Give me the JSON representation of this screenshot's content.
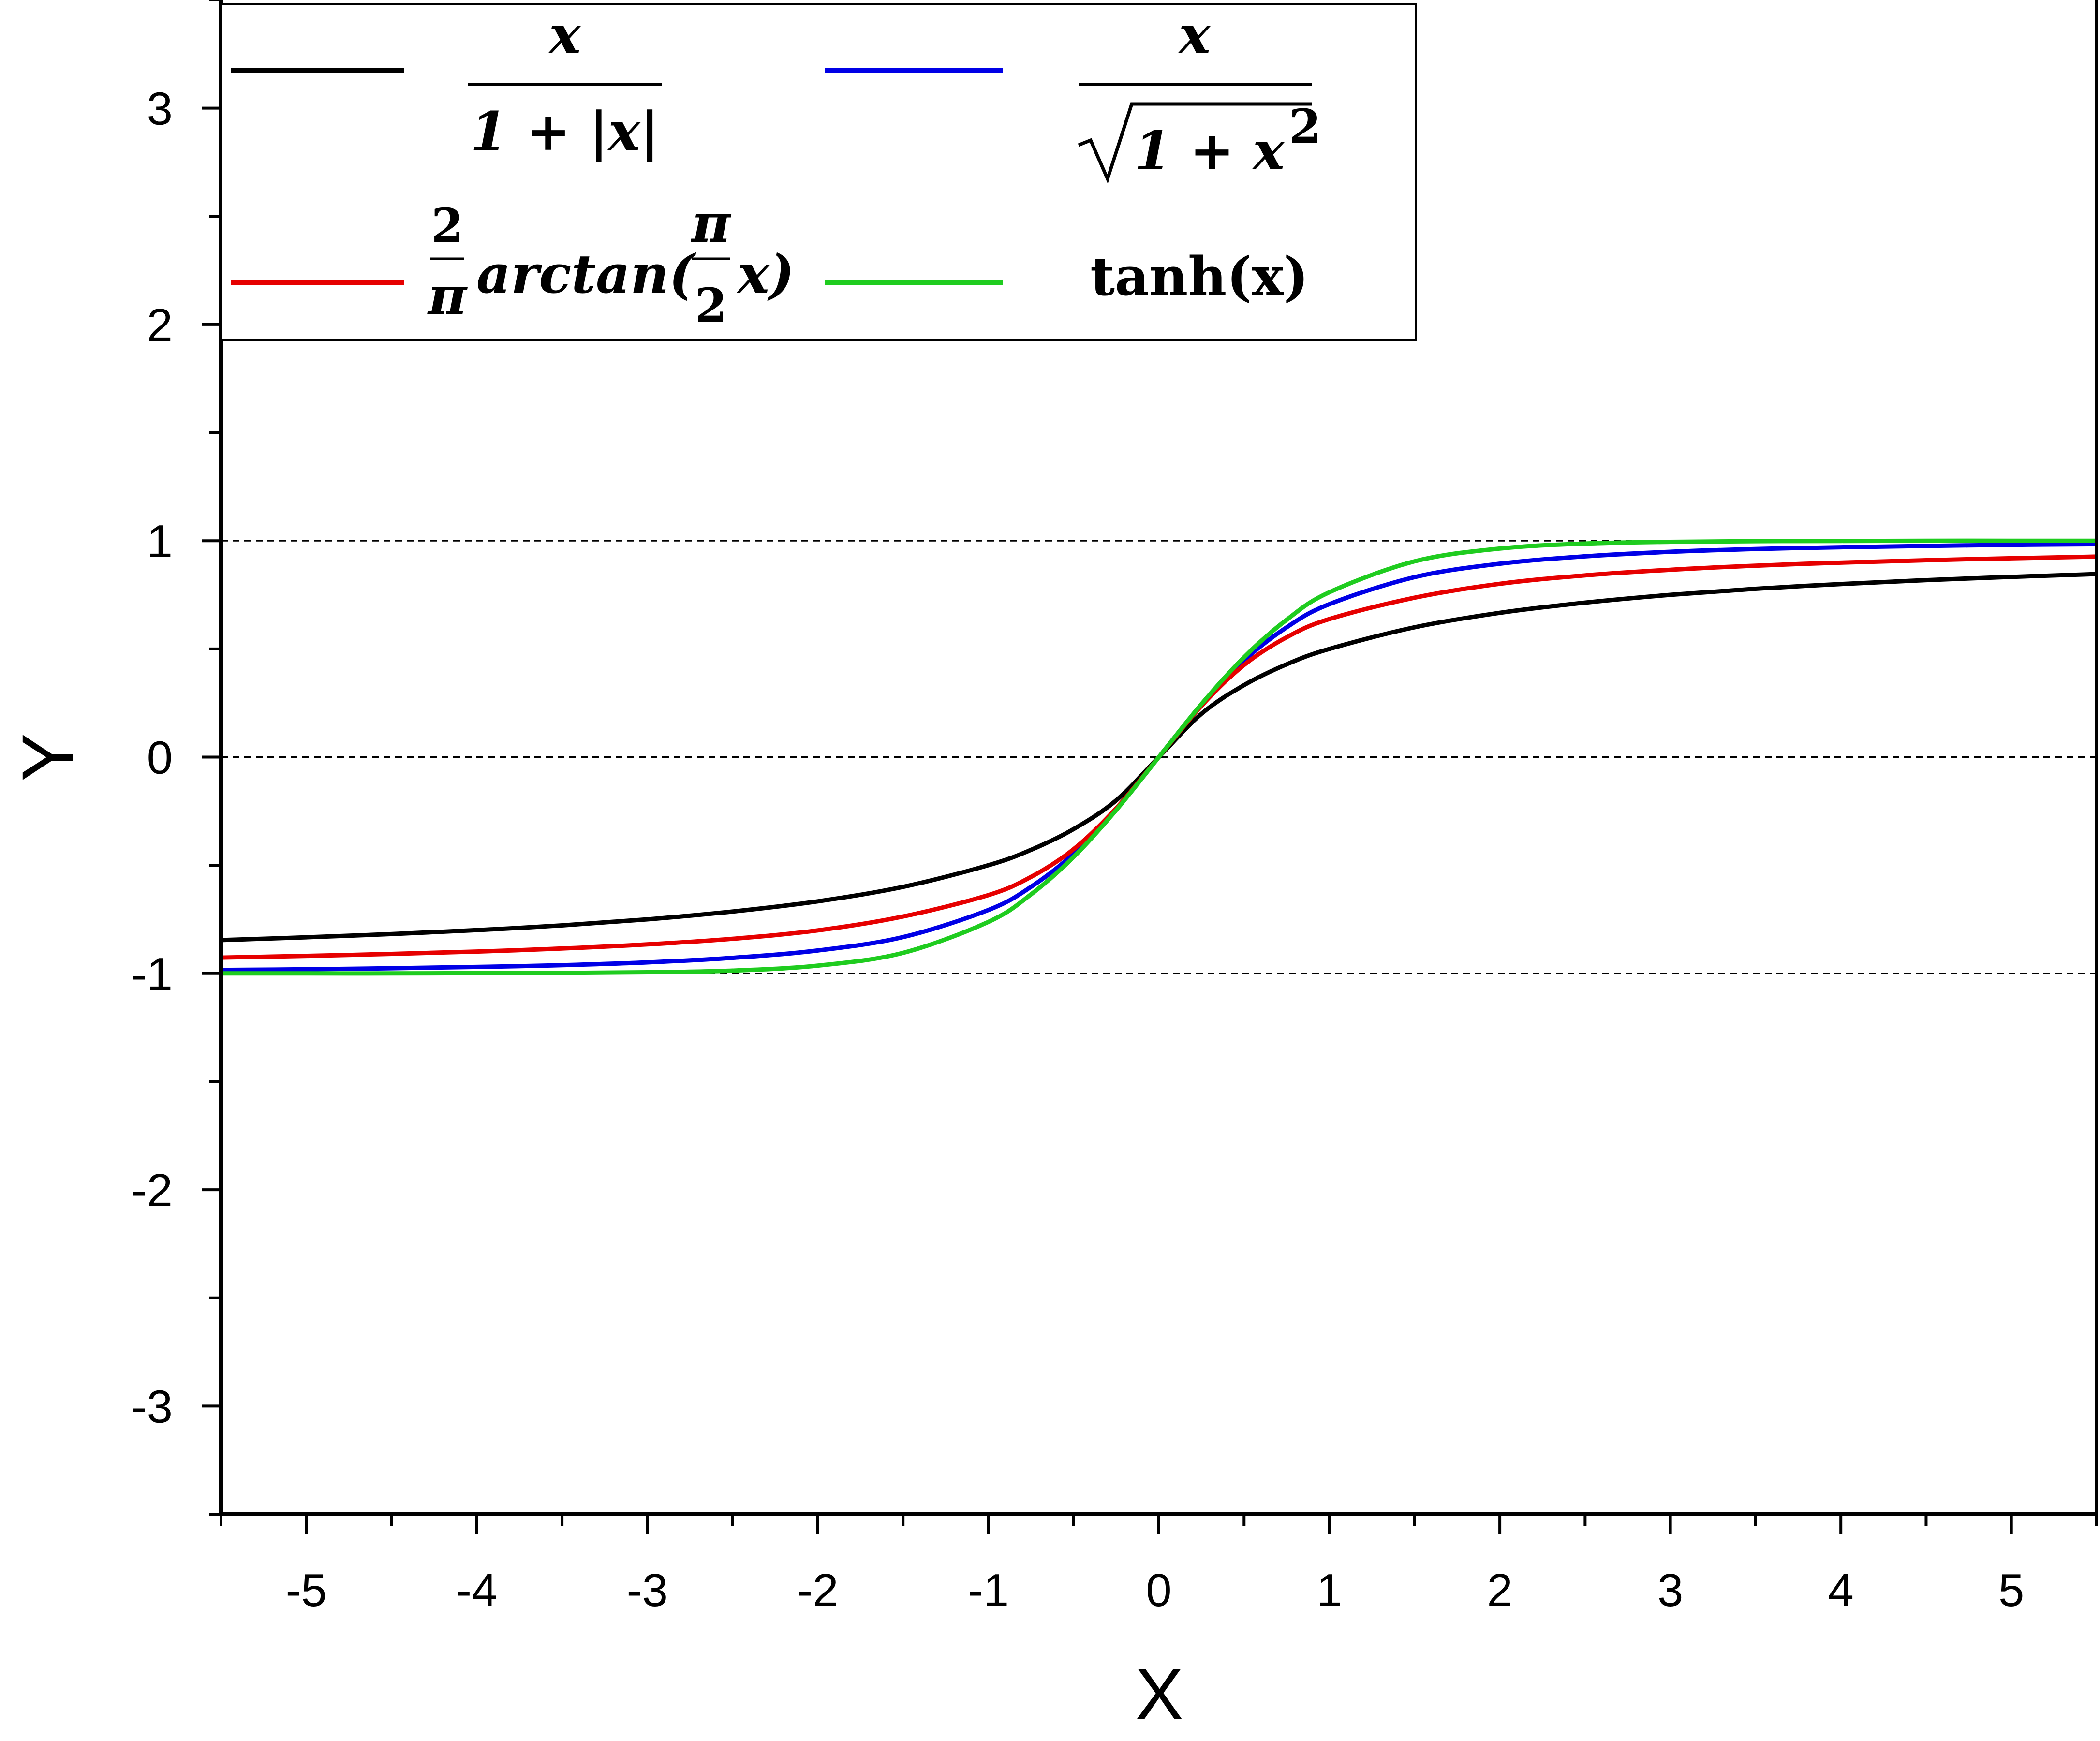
{
  "chart_data": {
    "type": "line",
    "xlabel": "X",
    "ylabel": "Y",
    "xlim": [
      -5.5,
      5.5
    ],
    "ylim": [
      -3.5,
      3.5
    ],
    "xticks": [
      "-5",
      "-4",
      "-3",
      "-2",
      "-1",
      "0",
      "1",
      "2",
      "3",
      "4",
      "5"
    ],
    "yticks": [
      "-3",
      "-2",
      "-1",
      "0",
      "1",
      "2",
      "3"
    ],
    "reference_lines_y": [
      -1,
      0,
      1
    ],
    "legend_position": "top-left",
    "x": [
      -5.5,
      -5,
      -4.5,
      -4,
      -3.5,
      -3,
      -2.5,
      -2,
      -1.5,
      -1,
      -0.75,
      -0.5,
      -0.25,
      0,
      0.25,
      0.5,
      0.75,
      1,
      1.5,
      2,
      2.5,
      3,
      3.5,
      4,
      4.5,
      5,
      5.5
    ],
    "series": [
      {
        "name": "x / (1 + |x|)",
        "color": "#000000",
        "values": [
          -0.846,
          -0.833,
          -0.818,
          -0.8,
          -0.778,
          -0.75,
          -0.714,
          -0.667,
          -0.6,
          -0.5,
          -0.429,
          -0.333,
          -0.2,
          0,
          0.2,
          0.333,
          0.429,
          0.5,
          0.6,
          0.667,
          0.714,
          0.75,
          0.778,
          0.8,
          0.818,
          0.833,
          0.846
        ]
      },
      {
        "name": "x / √(1 + x²)",
        "color": "#0000e6",
        "values": [
          -0.984,
          -0.981,
          -0.976,
          -0.97,
          -0.962,
          -0.949,
          -0.928,
          -0.894,
          -0.832,
          -0.707,
          -0.6,
          -0.447,
          -0.243,
          0,
          0.243,
          0.447,
          0.6,
          0.707,
          0.832,
          0.894,
          0.928,
          0.949,
          0.962,
          0.97,
          0.976,
          0.981,
          0.984
        ]
      },
      {
        "name": "(2/π) arctan((π/2) x)",
        "color": "#e60000",
        "values": [
          -0.927,
          -0.919,
          -0.91,
          -0.899,
          -0.885,
          -0.866,
          -0.84,
          -0.801,
          -0.737,
          -0.638,
          -0.554,
          -0.426,
          -0.237,
          0,
          0.237,
          0.426,
          0.554,
          0.638,
          0.737,
          0.801,
          0.84,
          0.866,
          0.885,
          0.899,
          0.91,
          0.919,
          0.927
        ]
      },
      {
        "name": "tanh(x)",
        "color": "#1fcc1f",
        "values": [
          -1.0,
          -1.0,
          -1.0,
          -0.999,
          -0.998,
          -0.995,
          -0.987,
          -0.964,
          -0.905,
          -0.762,
          -0.635,
          -0.462,
          -0.245,
          0,
          0.245,
          0.462,
          0.635,
          0.762,
          0.905,
          0.964,
          0.987,
          0.995,
          0.998,
          0.999,
          1.0,
          1.0,
          1.0
        ]
      }
    ]
  },
  "legend": {
    "s1_num": "x",
    "s1_den": "1 + |x|",
    "s2_num": "x",
    "s2_den": "1 + x",
    "s2_sup": "2",
    "s3_frac1_num": "2",
    "s3_frac1_den": "π",
    "s3_mid": "arctan(",
    "s3_frac2_num": "π",
    "s3_frac2_den": "2",
    "s3_tail": "x)",
    "s4_label": "tanh(x)"
  }
}
